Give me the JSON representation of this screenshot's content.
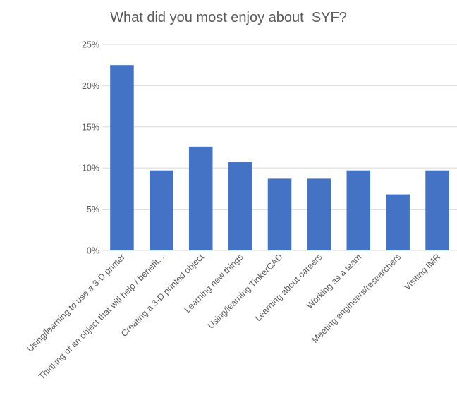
{
  "chart_data": {
    "type": "bar",
    "title": "What did you most enjoy about  SYF?",
    "categories": [
      "Using/learning to use a 3-D printer",
      "Thinking of an object that will help / benefit...",
      "Creating a 3-D printed object",
      "Learning new things",
      "Using/learning TinkerCAD",
      "Learning about careers",
      "Working as a team",
      "Meeting engineers/researchers",
      "Visiting IMR"
    ],
    "series": [
      {
        "values": [
          22.5,
          9.7,
          12.6,
          10.7,
          8.7,
          8.7,
          9.7,
          6.8,
          9.7
        ]
      }
    ],
    "ylim": [
      0,
      25
    ],
    "yticks": [
      "0%",
      "5%",
      "10%",
      "15%",
      "20%",
      "25%"
    ],
    "grid": true,
    "bar_color": "#4472c4",
    "xlabel": "",
    "ylabel": ""
  }
}
